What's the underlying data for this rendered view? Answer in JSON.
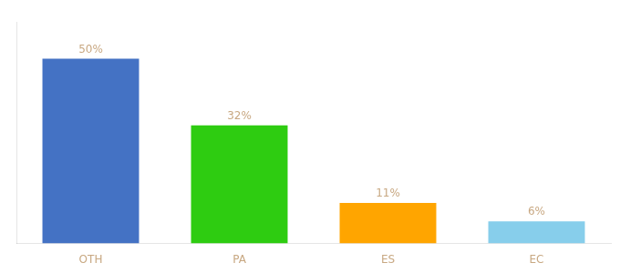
{
  "chart_data": {
    "type": "bar",
    "categories": [
      "OTH",
      "PA",
      "ES",
      "EC"
    ],
    "values": [
      50,
      32,
      11,
      6
    ],
    "value_labels": [
      "50%",
      "32%",
      "11%",
      "6%"
    ],
    "colors": [
      "#4472c4",
      "#2ecc11",
      "#ffa500",
      "#87ceeb"
    ],
    "ylim": [
      0,
      60
    ],
    "grid": false,
    "data_labels": true,
    "tick_labels": "x"
  }
}
